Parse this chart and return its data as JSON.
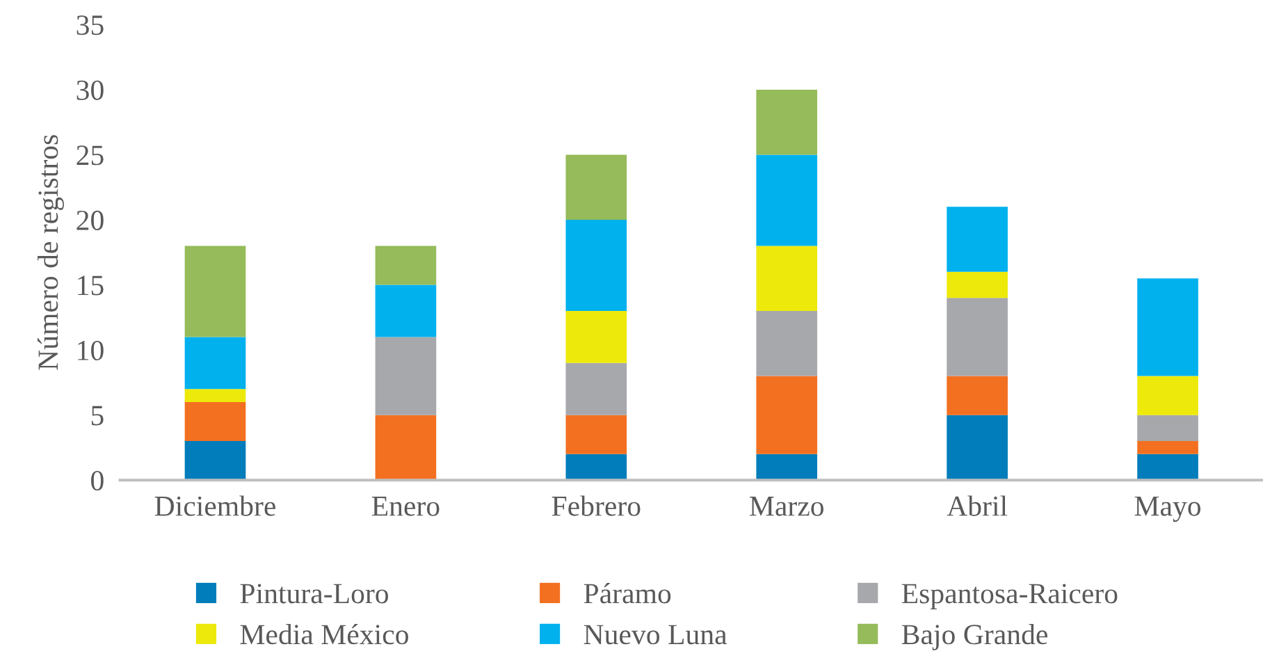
{
  "chart_data": {
    "type": "bar",
    "stacked": true,
    "ylabel": "Número de registros",
    "categories": [
      "Diciembre",
      "Enero",
      "Febrero",
      "Marzo",
      "Abril",
      "Mayo"
    ],
    "series": [
      {
        "name": "Pintura-Loro",
        "color": "#007dba",
        "values": [
          3,
          0,
          2,
          2,
          5,
          2
        ]
      },
      {
        "name": "Páramo",
        "color": "#f37021",
        "values": [
          3,
          5,
          3,
          6,
          3,
          1
        ]
      },
      {
        "name": "Espantosa-Raicero",
        "color": "#a7a8ab",
        "values": [
          0,
          6,
          4,
          5,
          6,
          2
        ]
      },
      {
        "name": "Media México",
        "color": "#ede90b",
        "values": [
          1,
          0,
          4,
          5,
          2,
          3
        ]
      },
      {
        "name": "Nuevo Luna",
        "color": "#00b1ee",
        "values": [
          4,
          4,
          7,
          7,
          5,
          7.5
        ]
      },
      {
        "name": "Bajo Grande",
        "color": "#95bb5a",
        "values": [
          7,
          3,
          5,
          5,
          0,
          0
        ]
      }
    ],
    "ylim": [
      0,
      35
    ],
    "yticks": [
      0,
      5,
      10,
      15,
      20,
      25,
      30,
      35
    ],
    "grid": false,
    "legend": "bottom"
  }
}
